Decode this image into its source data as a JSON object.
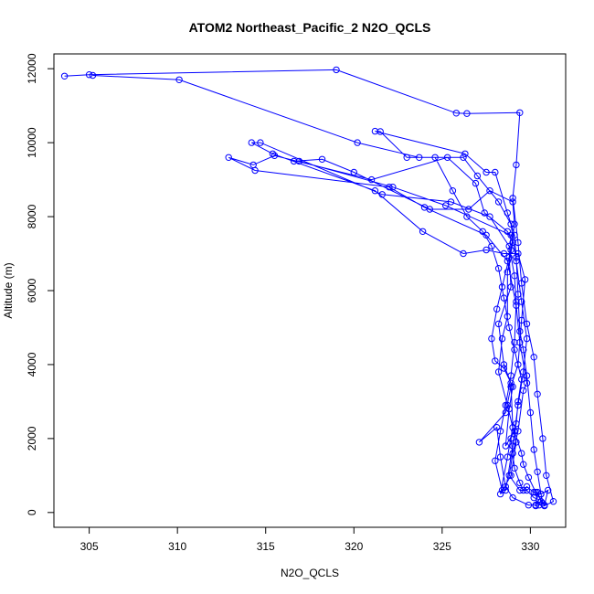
{
  "chart_data": {
    "type": "line",
    "title": "ATOM2 Northeast_Pacific_2 N2O_QCLS",
    "xlabel": "N2O_QCLS",
    "ylabel": "Altitude (m)",
    "xlim": [
      303,
      332
    ],
    "ylim": [
      -400,
      12400
    ],
    "xticks": [
      305,
      310,
      315,
      320,
      325,
      330
    ],
    "yticks": [
      0,
      2000,
      4000,
      6000,
      8000,
      10000,
      12000
    ],
    "grid": false,
    "legend": "none",
    "series": [
      {
        "color": "#0000ff",
        "marker": "open-circle",
        "points": [
          [
            303.6,
            11800
          ],
          [
            305.0,
            11840
          ],
          [
            319.0,
            11970
          ],
          [
            325.8,
            10800
          ],
          [
            326.4,
            10790
          ],
          [
            329.4,
            10810
          ],
          [
            329.2,
            9400
          ],
          [
            329.0,
            8500
          ],
          [
            329.3,
            7300
          ],
          [
            329.5,
            6200
          ],
          [
            329.8,
            5100
          ],
          [
            330.2,
            4200
          ],
          [
            330.4,
            3200
          ],
          [
            330.7,
            2000
          ],
          [
            330.9,
            1000
          ],
          [
            331.3,
            300
          ],
          [
            330.8,
            180
          ],
          [
            330.6,
            300
          ],
          [
            330.4,
            550
          ],
          [
            330.3,
            180
          ],
          [
            330.5,
            200
          ],
          [
            330.7,
            250
          ],
          [
            330.6,
            500
          ],
          [
            330.2,
            550
          ],
          [
            329.8,
            700
          ],
          [
            329.6,
            600
          ],
          [
            329.4,
            800
          ],
          [
            329.1,
            1200
          ],
          [
            328.9,
            2000
          ],
          [
            329.2,
            2400
          ],
          [
            329.3,
            3000
          ],
          [
            329.5,
            3600
          ],
          [
            329.1,
            4400
          ],
          [
            328.8,
            5000
          ],
          [
            328.5,
            5800
          ],
          [
            328.2,
            6600
          ],
          [
            327.8,
            7200
          ],
          [
            327.3,
            7600
          ],
          [
            326.4,
            8000
          ],
          [
            325.6,
            8700
          ],
          [
            324.6,
            9600
          ],
          [
            323.0,
            9600
          ],
          [
            321.5,
            10300
          ],
          [
            321.2,
            10310
          ],
          [
            326.3,
            9700
          ],
          [
            327.5,
            9200
          ],
          [
            328.0,
            9200
          ],
          [
            328.7,
            8100
          ],
          [
            329.1,
            7500
          ],
          [
            329.2,
            6900
          ],
          [
            329.3,
            5900
          ],
          [
            329.4,
            4900
          ],
          [
            329.6,
            4400
          ],
          [
            329.8,
            3700
          ],
          [
            330.0,
            2700
          ],
          [
            330.2,
            1700
          ],
          [
            330.4,
            1100
          ],
          [
            330.6,
            500
          ],
          [
            331.0,
            600
          ],
          [
            330.8,
            200
          ],
          [
            330.3,
            550
          ],
          [
            329.9,
            950
          ],
          [
            329.6,
            1300
          ],
          [
            329.5,
            1600
          ],
          [
            329.1,
            2200
          ],
          [
            328.6,
            1800
          ],
          [
            328.8,
            2800
          ],
          [
            329.0,
            3400
          ],
          [
            328.5,
            3900
          ],
          [
            328.0,
            4100
          ],
          [
            327.8,
            4700
          ],
          [
            328.1,
            5500
          ],
          [
            328.4,
            6100
          ],
          [
            328.9,
            7100
          ],
          [
            329.1,
            7800
          ],
          [
            329.0,
            8400
          ],
          [
            327.7,
            8700
          ],
          [
            326.5,
            8200
          ],
          [
            324.3,
            8200
          ],
          [
            320.0,
            9200
          ],
          [
            318.2,
            9550
          ],
          [
            316.6,
            9500
          ],
          [
            316.9,
            9500
          ],
          [
            322.2,
            8800
          ],
          [
            325.2,
            8300
          ],
          [
            328.9,
            7500
          ],
          [
            328.8,
            6900
          ],
          [
            328.9,
            6100
          ],
          [
            328.2,
            5100
          ],
          [
            328.5,
            4000
          ],
          [
            328.9,
            3500
          ],
          [
            329.0,
            2300
          ],
          [
            328.7,
            1500
          ],
          [
            328.3,
            500
          ],
          [
            328.9,
            1000
          ],
          [
            329.2,
            1900
          ],
          [
            328.7,
            2900
          ],
          [
            328.2,
            3800
          ],
          [
            328.4,
            4700
          ],
          [
            328.7,
            5300
          ],
          [
            328.7,
            6500
          ],
          [
            329.0,
            7300
          ],
          [
            328.7,
            7600
          ],
          [
            327.4,
            8100
          ],
          [
            326.9,
            8900
          ],
          [
            325.3,
            9600
          ],
          [
            321.0,
            9000
          ],
          [
            315.5,
            9650
          ],
          [
            314.3,
            9400
          ],
          [
            312.9,
            9600
          ],
          [
            314.4,
            9250
          ],
          [
            322.0,
            8800
          ],
          [
            324.0,
            8250
          ],
          [
            327.5,
            7500
          ],
          [
            328.7,
            6800
          ],
          [
            329.2,
            5600
          ],
          [
            329.4,
            4600
          ],
          [
            329.8,
            3500
          ],
          [
            329.6,
            3300
          ],
          [
            329.3,
            2200
          ],
          [
            329.0,
            1600
          ],
          [
            328.8,
            1000
          ],
          [
            329.4,
            600
          ],
          [
            329.8,
            600
          ],
          [
            330.2,
            400
          ],
          [
            330.5,
            350
          ],
          [
            330.3,
            200
          ],
          [
            329.9,
            200
          ],
          [
            329.0,
            400
          ],
          [
            328.6,
            700
          ],
          [
            328.3,
            1500
          ],
          [
            328.1,
            2300
          ],
          [
            327.1,
            1900
          ],
          [
            328.6,
            2700
          ],
          [
            328.9,
            3400
          ],
          [
            329.3,
            4000
          ],
          [
            329.5,
            5200
          ],
          [
            329.7,
            6300
          ],
          [
            329.3,
            7000
          ],
          [
            328.5,
            7000
          ],
          [
            327.5,
            7100
          ],
          [
            326.2,
            7000
          ],
          [
            323.9,
            7600
          ],
          [
            321.2,
            8700
          ],
          [
            315.4,
            9700
          ],
          [
            314.2,
            10000
          ],
          [
            314.7,
            10000
          ],
          [
            321.6,
            8600
          ],
          [
            325.5,
            8400
          ],
          [
            327.7,
            8000
          ],
          [
            328.8,
            7200
          ],
          [
            329.1,
            6400
          ],
          [
            329.2,
            5700
          ],
          [
            329.1,
            4600
          ],
          [
            328.9,
            3700
          ],
          [
            328.6,
            2900
          ],
          [
            328.3,
            2200
          ],
          [
            328.0,
            1400
          ],
          [
            328.4,
            600
          ],
          [
            328.6,
            600
          ],
          [
            329.0,
            1800
          ],
          [
            329.3,
            2900
          ],
          [
            329.6,
            3800
          ],
          [
            329.8,
            4700
          ],
          [
            329.5,
            5700
          ],
          [
            329.2,
            6800
          ],
          [
            328.9,
            7800
          ],
          [
            328.2,
            8400
          ],
          [
            327.0,
            9100
          ],
          [
            326.2,
            9600
          ],
          [
            323.7,
            9600
          ],
          [
            320.2,
            10000
          ],
          [
            310.1,
            11700
          ],
          [
            305.2,
            11820
          ]
        ]
      }
    ]
  }
}
